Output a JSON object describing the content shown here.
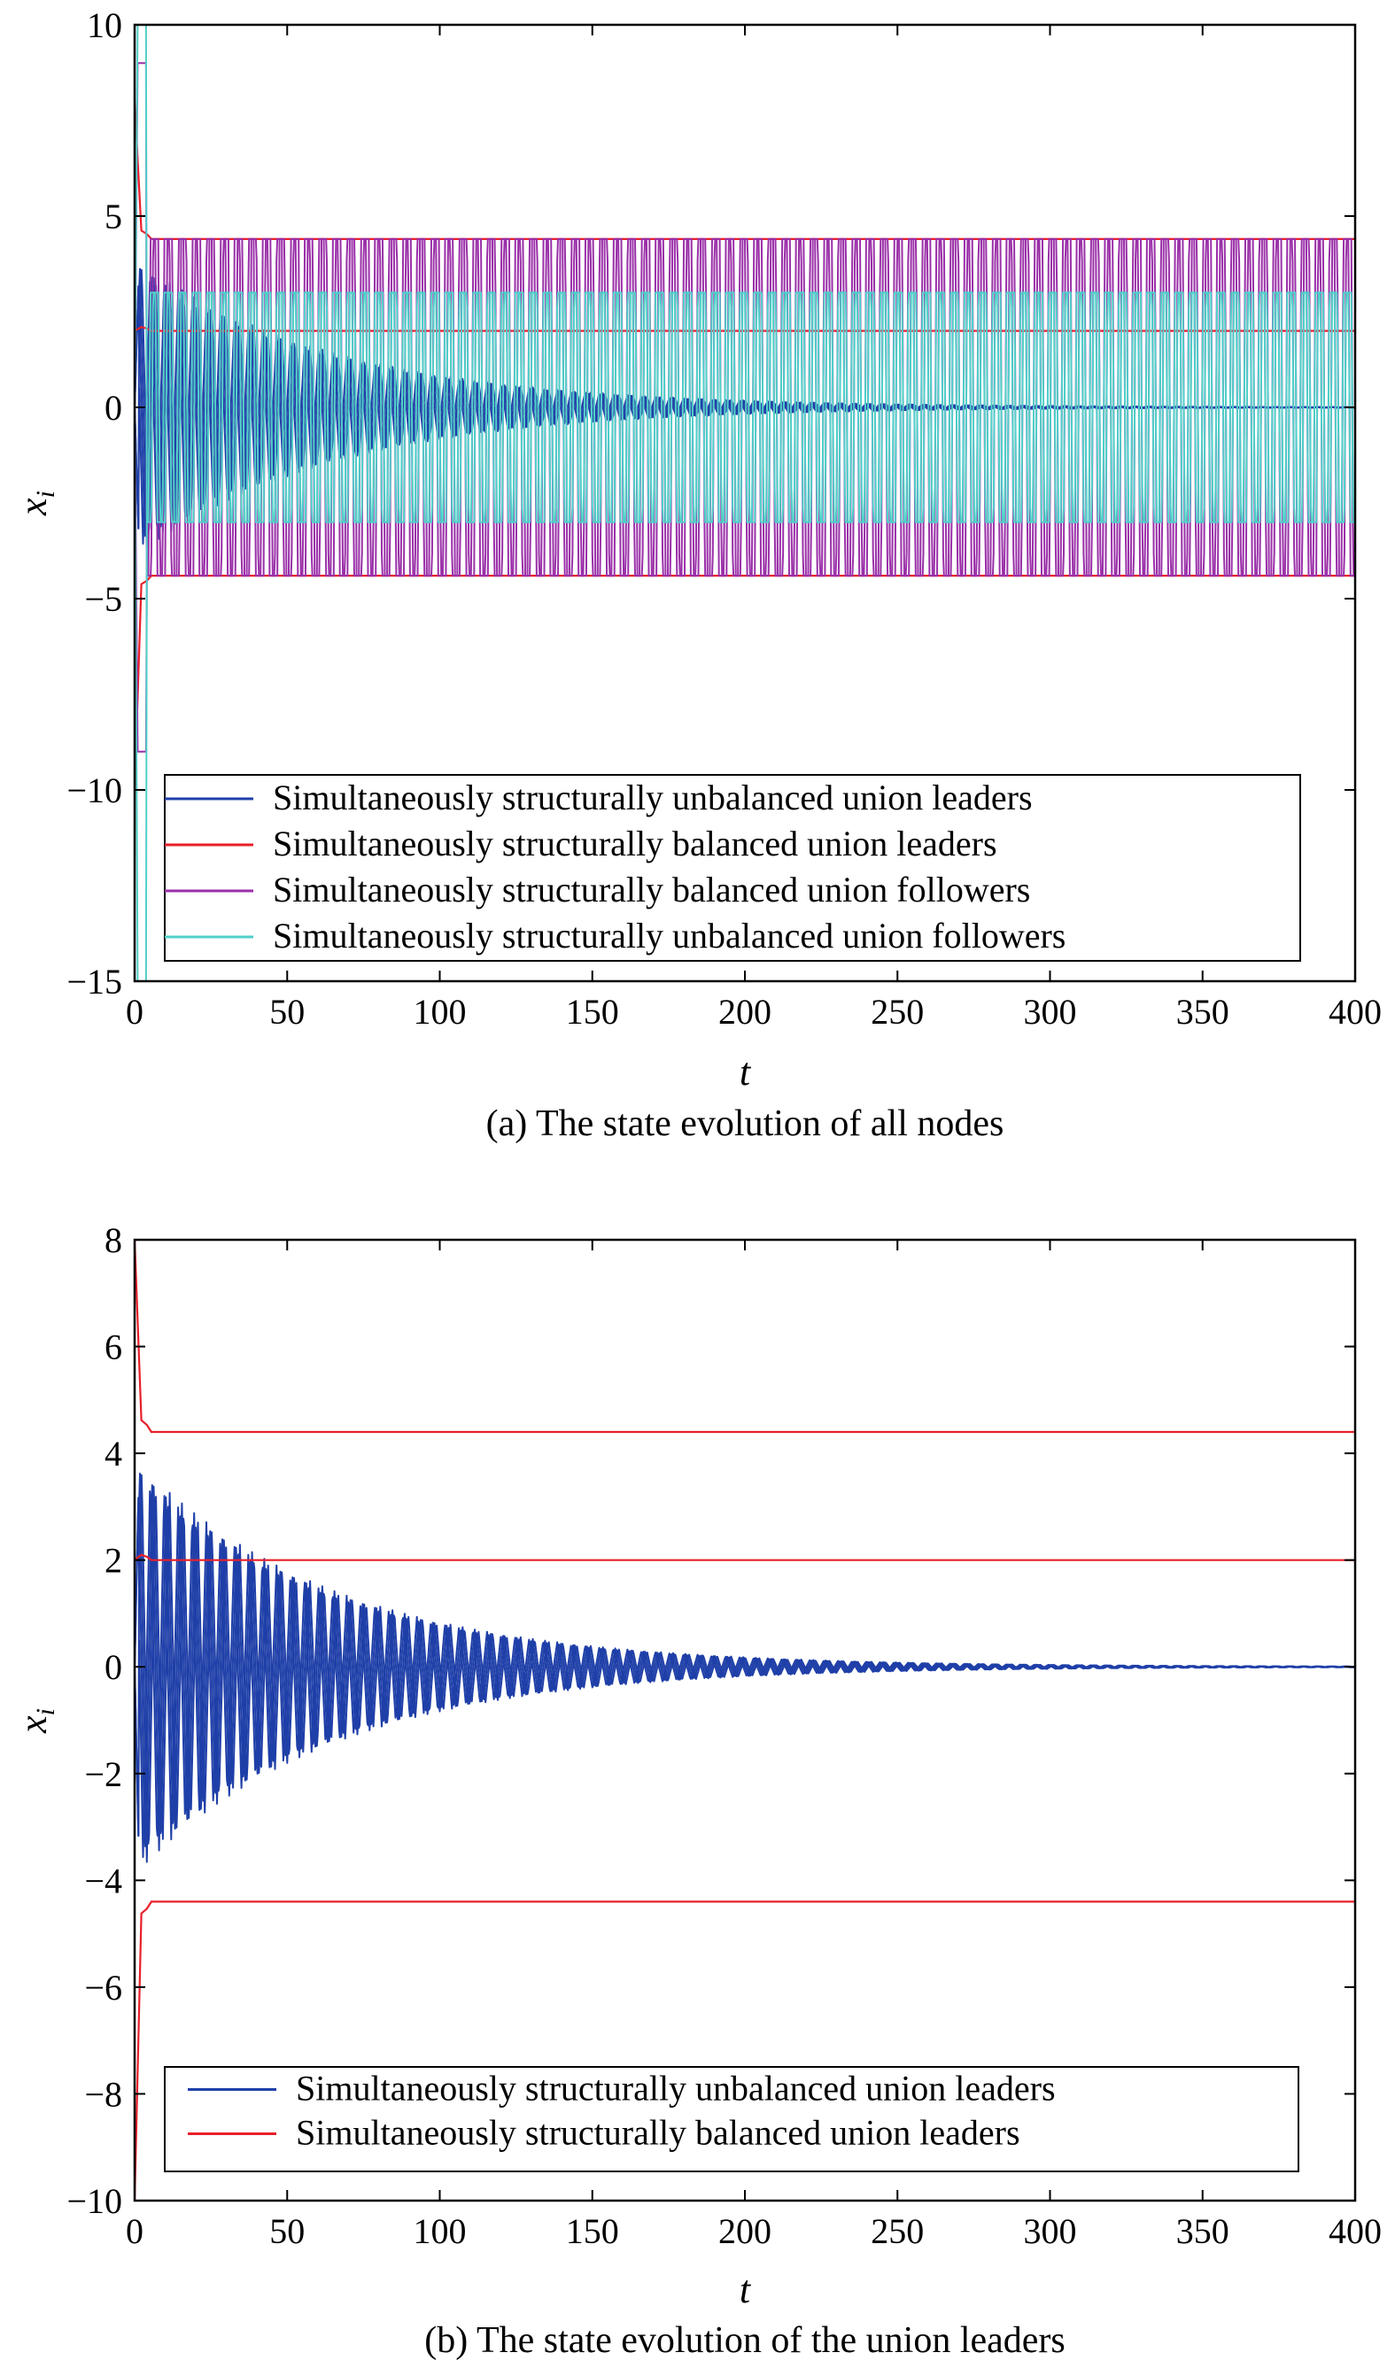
{
  "colors": {
    "unbalanced_leaders": "#1f3fa8",
    "balanced_leaders": "#e8202a",
    "balanced_followers": "#9a2fa8",
    "unbalanced_followers": "#4fd0c8"
  },
  "chart_data": [
    {
      "type": "line",
      "caption": "(a) The state evolution of all nodes",
      "xlabel": "t",
      "ylabel": "x",
      "ylabel_sub": "i",
      "xlim": [
        0,
        400
      ],
      "ylim": [
        -15,
        10
      ],
      "xticks": [
        0,
        50,
        100,
        150,
        200,
        250,
        300,
        350,
        400
      ],
      "yticks": [
        -15,
        -10,
        -5,
        0,
        5,
        10
      ],
      "ytick_labels": [
        "−15",
        "−10",
        "−5",
        "0",
        "5",
        "10"
      ],
      "legend_position": "bottom",
      "series": [
        {
          "name": "Simultaneously structurally unbalanced union leaders",
          "color": "#1f3fa8",
          "pattern": "decaying oscillation",
          "initial_amplitude": 3.8,
          "final_value": 0,
          "period": 4.6
        },
        {
          "name": "Simultaneously structurally balanced union leaders",
          "color": "#e8202a",
          "steady_values": [
            4.4,
            2.0,
            -4.4
          ],
          "initial_values": [
            8,
            -10
          ]
        },
        {
          "name": "Simultaneously structurally balanced union followers",
          "color": "#9a2fa8",
          "pattern": "sustained oscillation",
          "amplitude": 4.4,
          "initial_values": [
            9,
            -9
          ],
          "period": 4.6
        },
        {
          "name": "Simultaneously structurally unbalanced union followers",
          "color": "#4fd0c8",
          "pattern": "sustained oscillation",
          "amplitude": 3.0,
          "initial_values": [
            10,
            -15
          ],
          "period": 4.6
        }
      ]
    },
    {
      "type": "line",
      "caption": "(b) The state evolution of the union leaders",
      "xlabel": "t",
      "ylabel": "x",
      "ylabel_sub": "i",
      "xlim": [
        0,
        400
      ],
      "ylim": [
        -10,
        8
      ],
      "xticks": [
        0,
        50,
        100,
        150,
        200,
        250,
        300,
        350,
        400
      ],
      "yticks": [
        -10,
        -8,
        -6,
        -4,
        -2,
        0,
        2,
        4,
        6,
        8
      ],
      "ytick_labels": [
        "−10",
        "−8",
        "−6",
        "−4",
        "−2",
        "0",
        "2",
        "4",
        "6",
        "8"
      ],
      "legend_position": "bottom",
      "series": [
        {
          "name": "Simultaneously structurally unbalanced union leaders",
          "color": "#1f3fa8",
          "pattern": "decaying oscillation",
          "initial_amplitude": 3.8,
          "final_value": 0,
          "period": 4.6
        },
        {
          "name": "Simultaneously structurally balanced union leaders",
          "color": "#e8202a",
          "steady_values": [
            4.4,
            2.0,
            -4.4
          ],
          "initial_values": [
            8,
            -10
          ]
        }
      ]
    }
  ]
}
